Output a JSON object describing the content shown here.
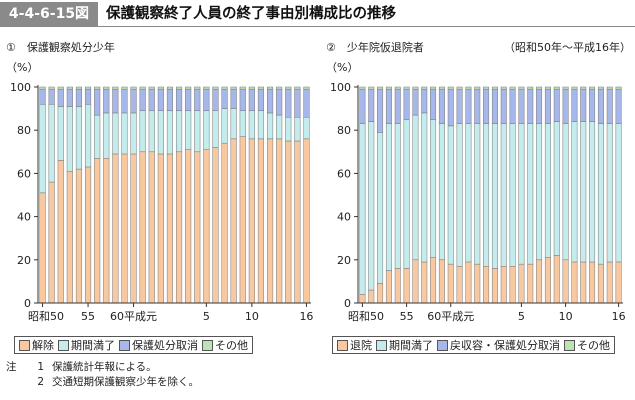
{
  "header": {
    "figure_id": "4-4-6-15図",
    "title": "保護観察終了人員の終了事由別構成比の推移"
  },
  "period_note": "（昭和50年～平成16年）",
  "colors": {
    "orange": "#f8c9a0",
    "teal": "#c4ecec",
    "blue": "#a7b7e9",
    "green": "#bde3b5"
  },
  "chart_data": [
    {
      "type": "bar",
      "stacked": true,
      "title": "①　保護観察処分少年",
      "ylabel": "（%）",
      "ylim": [
        0,
        100
      ],
      "yticks": [
        "0",
        "20",
        "40",
        "60",
        "80",
        "100"
      ],
      "xtick_labels": [
        "昭和50",
        "55",
        "60平成元",
        "5",
        "10",
        "16"
      ],
      "categories": [
        "昭和50",
        "51",
        "52",
        "53",
        "54",
        "55",
        "56",
        "57",
        "58",
        "59",
        "60",
        "61",
        "62",
        "63",
        "平成元",
        "2",
        "3",
        "4",
        "5",
        "6",
        "7",
        "8",
        "9",
        "10",
        "11",
        "12",
        "13",
        "14",
        "15",
        "16"
      ],
      "series": [
        {
          "name": "解除",
          "color": "orange",
          "values": [
            51,
            56,
            66,
            61,
            62,
            63,
            67,
            67,
            69,
            69,
            69,
            70,
            70,
            69,
            69,
            70,
            71,
            70,
            71,
            72,
            74,
            76,
            77,
            76,
            76,
            76,
            76,
            75,
            75,
            76
          ]
        },
        {
          "name": "期間満了",
          "color": "teal",
          "values": [
            41,
            36,
            25,
            30,
            29,
            29,
            20,
            21,
            19,
            19,
            19,
            19,
            19,
            20,
            20,
            19,
            18,
            19,
            18,
            17,
            16,
            14,
            12,
            13,
            13,
            12,
            11,
            11,
            11,
            10
          ]
        },
        {
          "name": "保護処分取消",
          "color": "blue",
          "values": [
            7,
            7,
            8,
            8,
            8,
            7,
            12,
            11,
            11,
            11,
            11,
            10,
            10,
            10,
            10,
            10,
            10,
            10,
            10,
            10,
            9,
            9,
            10,
            10,
            10,
            11,
            12,
            13,
            13,
            13
          ]
        },
        {
          "name": "その他",
          "color": "green",
          "values": [
            1,
            1,
            1,
            1,
            1,
            1,
            1,
            1,
            1,
            1,
            1,
            1,
            1,
            1,
            1,
            1,
            1,
            1,
            1,
            1,
            1,
            1,
            1,
            1,
            1,
            1,
            1,
            1,
            1,
            1
          ]
        }
      ],
      "legend": [
        "解除",
        "期間満了",
        "保護処分取消",
        "その他"
      ]
    },
    {
      "type": "bar",
      "stacked": true,
      "title": "②　少年院仮退院者",
      "ylabel": "（%）",
      "ylim": [
        0,
        100
      ],
      "yticks": [
        "0",
        "20",
        "40",
        "60",
        "80",
        "100"
      ],
      "xtick_labels": [
        "昭和50",
        "55",
        "60平成元",
        "5",
        "10",
        "16"
      ],
      "categories": [
        "昭和50",
        "51",
        "52",
        "53",
        "54",
        "55",
        "56",
        "57",
        "58",
        "59",
        "60",
        "61",
        "62",
        "63",
        "平成元",
        "2",
        "3",
        "4",
        "5",
        "6",
        "7",
        "8",
        "9",
        "10",
        "11",
        "12",
        "13",
        "14",
        "15",
        "16"
      ],
      "series": [
        {
          "name": "退院",
          "color": "orange",
          "values": [
            4,
            6,
            9,
            15,
            16,
            16,
            20,
            19,
            21,
            20,
            18,
            17,
            19,
            18,
            17,
            16,
            17,
            17,
            18,
            18,
            20,
            21,
            22,
            20,
            19,
            19,
            19,
            18,
            19,
            19
          ]
        },
        {
          "name": "期間満了",
          "color": "teal",
          "values": [
            79,
            78,
            70,
            68,
            67,
            69,
            67,
            69,
            64,
            63,
            64,
            66,
            64,
            65,
            66,
            67,
            66,
            66,
            65,
            65,
            63,
            62,
            62,
            63,
            65,
            65,
            65,
            65,
            64,
            64
          ]
        },
        {
          "name": "戻収容・保護処分取消",
          "color": "blue",
          "values": [
            16,
            15,
            20,
            16,
            16,
            14,
            12,
            11,
            14,
            16,
            17,
            16,
            16,
            16,
            16,
            16,
            16,
            16,
            16,
            16,
            16,
            16,
            15,
            16,
            15,
            15,
            15,
            16,
            16,
            16
          ]
        },
        {
          "name": "その他",
          "color": "green",
          "values": [
            1,
            1,
            1,
            1,
            1,
            1,
            1,
            1,
            1,
            1,
            1,
            1,
            1,
            1,
            1,
            1,
            1,
            1,
            1,
            1,
            1,
            1,
            1,
            1,
            1,
            1,
            1,
            1,
            1,
            1
          ]
        }
      ],
      "legend": [
        "退院",
        "期間満了",
        "戻収容・保護処分取消",
        "その他"
      ]
    }
  ],
  "notes": {
    "label": "注",
    "items": [
      {
        "num": "1",
        "text": "保護統計年報による。"
      },
      {
        "num": "2",
        "text": "交通短期保護観察少年を除く。"
      }
    ]
  }
}
